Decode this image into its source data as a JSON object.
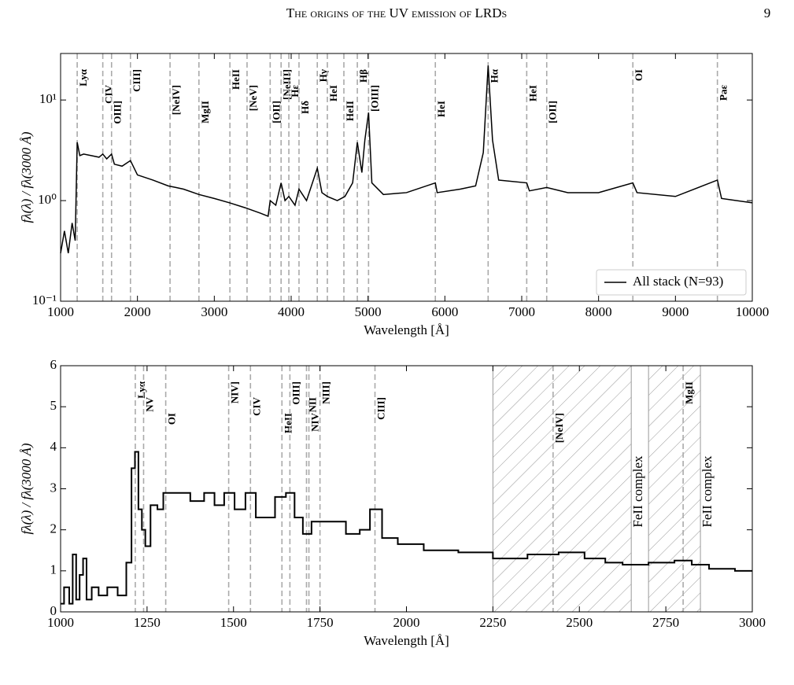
{
  "header": {
    "title": "The origins of the UV emission of LRDs",
    "page": "9"
  },
  "chart_data": [
    {
      "type": "line",
      "log_y": true,
      "xlabel": "Wavelength [Å]",
      "ylabel": "fλ(λ) / fλ(3000 Å)",
      "xlim": [
        1000,
        10000
      ],
      "xticks": [
        1000,
        2000,
        3000,
        4000,
        5000,
        6000,
        7000,
        8000,
        9000,
        10000
      ],
      "ylim": [
        0.1,
        29
      ],
      "yticks": [
        {
          "value": 0.1,
          "label": "10⁻¹"
        },
        {
          "value": 1,
          "label": "10⁰"
        },
        {
          "value": 10,
          "label": "10¹"
        }
      ],
      "legend": "lower right",
      "lines": [
        {
          "label": "Lyα",
          "wavelength": 1216
        },
        {
          "label": "CIV",
          "wavelength": 1549
        },
        {
          "label": "OIII]",
          "wavelength": 1663
        },
        {
          "label": "CIII]",
          "wavelength": 1909
        },
        {
          "label": "[NeIV]",
          "wavelength": 2424
        },
        {
          "label": "MgII",
          "wavelength": 2800
        },
        {
          "label": "HeII",
          "wavelength": 3203
        },
        {
          "label": "[NeV]",
          "wavelength": 3426
        },
        {
          "label": "[OII]",
          "wavelength": 3727
        },
        {
          "label": "[NeIII]",
          "wavelength": 3869
        },
        {
          "label": "Hε",
          "wavelength": 3970
        },
        {
          "label": "Hδ",
          "wavelength": 4102
        },
        {
          "label": "Hγ",
          "wavelength": 4340
        },
        {
          "label": "HeI",
          "wavelength": 4471
        },
        {
          "label": "HeII",
          "wavelength": 4686
        },
        {
          "label": "Hβ",
          "wavelength": 4861
        },
        {
          "label": "[OIII]",
          "wavelength": 5007
        },
        {
          "label": "HeI",
          "wavelength": 5876
        },
        {
          "label": "Hα",
          "wavelength": 6563
        },
        {
          "label": "HeI",
          "wavelength": 7065
        },
        {
          "label": "[OII]",
          "wavelength": 7325
        },
        {
          "label": "OI",
          "wavelength": 8446
        },
        {
          "label": "Paε",
          "wavelength": 9546
        }
      ],
      "x": [
        1000,
        1050,
        1100,
        1150,
        1190,
        1216,
        1250,
        1300,
        1400,
        1500,
        1549,
        1600,
        1663,
        1700,
        1800,
        1909,
        2000,
        2200,
        2400,
        2500,
        2600,
        2800,
        3000,
        3200,
        3400,
        3600,
        3700,
        3727,
        3800,
        3869,
        3920,
        3970,
        4050,
        4102,
        4200,
        4340,
        4400,
        4471,
        4600,
        4700,
        4800,
        4861,
        4920,
        4959,
        5007,
        5050,
        5200,
        5500,
        5876,
        5900,
        6200,
        6400,
        6500,
        6563,
        6620,
        6700,
        7065,
        7100,
        7325,
        7600,
        8000,
        8446,
        8500,
        9000,
        9546,
        9600,
        10000
      ],
      "series": [
        {
          "name": "All stack (N=93)",
          "color": "#000000",
          "values": [
            0.3,
            0.5,
            0.3,
            0.6,
            0.4,
            3.8,
            2.8,
            2.9,
            2.8,
            2.7,
            2.9,
            2.6,
            2.9,
            2.3,
            2.2,
            2.5,
            1.8,
            1.6,
            1.4,
            1.35,
            1.3,
            1.15,
            1.05,
            0.95,
            0.85,
            0.75,
            0.7,
            1.0,
            0.9,
            1.5,
            1.0,
            1.1,
            0.9,
            1.3,
            1.0,
            2.1,
            1.2,
            1.1,
            1.0,
            1.1,
            1.5,
            3.8,
            1.9,
            4.0,
            7.5,
            1.5,
            1.15,
            1.2,
            1.5,
            1.2,
            1.3,
            1.4,
            3,
            22,
            4,
            1.6,
            1.5,
            1.25,
            1.35,
            1.2,
            1.2,
            1.5,
            1.2,
            1.1,
            1.6,
            1.05,
            0.95
          ]
        }
      ]
    },
    {
      "type": "line",
      "steps": true,
      "xlabel": "Wavelength [Å]",
      "ylabel": "fλ(λ) / fλ(3000 Å)",
      "xlim": [
        1000,
        3000
      ],
      "xticks": [
        1000,
        1250,
        1500,
        1750,
        2000,
        2250,
        2500,
        2750,
        3000
      ],
      "ylim": [
        0,
        6
      ],
      "yticks": [
        0,
        1,
        2,
        3,
        4,
        5,
        6
      ],
      "shaded_regions": [
        {
          "xmin": 2250,
          "xmax": 2650,
          "label": "FeII complex"
        },
        {
          "xmin": 2700,
          "xmax": 2850,
          "label": "FeII complex"
        }
      ],
      "lines": [
        {
          "label": "Lyα",
          "wavelength": 1216
        },
        {
          "label": "NV",
          "wavelength": 1240
        },
        {
          "label": "OI",
          "wavelength": 1304
        },
        {
          "label": "NIV]",
          "wavelength": 1486
        },
        {
          "label": "CIV",
          "wavelength": 1549
        },
        {
          "label": "HeII",
          "wavelength": 1640
        },
        {
          "label": "OIII]",
          "wavelength": 1663
        },
        {
          "label": "NII",
          "wavelength": 1711
        },
        {
          "label": "NIV",
          "wavelength": 1718
        },
        {
          "label": "NIII]",
          "wavelength": 1750
        },
        {
          "label": "CIII]",
          "wavelength": 1909
        },
        {
          "label": "[NeIV]",
          "wavelength": 2424
        },
        {
          "label": "MgII",
          "wavelength": 2800
        }
      ],
      "x": [
        1000,
        1020,
        1030,
        1040,
        1050,
        1060,
        1070,
        1080,
        1100,
        1120,
        1150,
        1180,
        1200,
        1210,
        1220,
        1230,
        1240,
        1250,
        1270,
        1290,
        1304,
        1350,
        1400,
        1430,
        1460,
        1486,
        1520,
        1549,
        1580,
        1600,
        1640,
        1663,
        1690,
        1711,
        1740,
        1760,
        1800,
        1850,
        1880,
        1909,
        1950,
        2000,
        2100,
        2200,
        2300,
        2400,
        2480,
        2550,
        2600,
        2650,
        2750,
        2800,
        2850,
        2900,
        3000
      ],
      "series": [
        {
          "color": "#000000",
          "values": [
            0.2,
            0.6,
            0.2,
            1.4,
            0.3,
            0.9,
            1.3,
            0.3,
            0.6,
            0.4,
            0.6,
            0.4,
            1.2,
            3.5,
            3.9,
            2.5,
            2.0,
            1.6,
            2.6,
            2.5,
            2.9,
            2.9,
            2.7,
            2.9,
            2.6,
            2.9,
            2.5,
            2.9,
            2.3,
            2.3,
            2.8,
            2.9,
            2.3,
            1.9,
            2.2,
            2.2,
            2.2,
            1.9,
            2.0,
            2.5,
            1.8,
            1.65,
            1.5,
            1.45,
            1.3,
            1.4,
            1.45,
            1.3,
            1.2,
            1.15,
            1.2,
            1.25,
            1.15,
            1.05,
            1.0
          ]
        }
      ]
    }
  ]
}
